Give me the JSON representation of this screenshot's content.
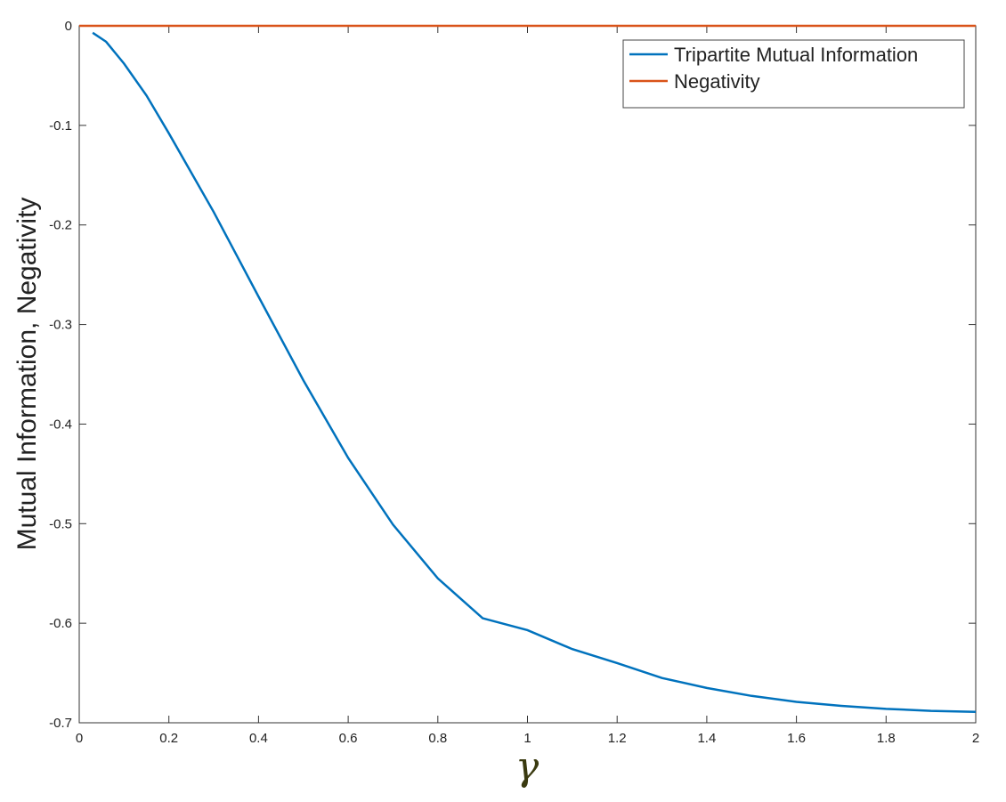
{
  "chart_data": {
    "type": "line",
    "ylabel": "Mutual Information, Negativity",
    "xlabel": "γ",
    "series": [
      {
        "name": "Tripartite Mutual Information",
        "color": "#0072bd",
        "x": [
          0.03,
          0.06,
          0.1,
          0.15,
          0.2,
          0.3,
          0.4,
          0.5,
          0.6,
          0.7,
          0.8,
          0.9,
          1.0,
          1.1,
          1.2,
          1.3,
          1.4,
          1.5,
          1.6,
          1.7,
          1.8,
          1.9,
          2.0
        ],
        "values": [
          -0.007,
          -0.016,
          -0.038,
          -0.07,
          -0.108,
          -0.187,
          -0.272,
          -0.356,
          -0.434,
          -0.501,
          -0.555,
          -0.595,
          -0.607,
          -0.626,
          -0.64,
          -0.655,
          -0.665,
          -0.673,
          -0.679,
          -0.683,
          -0.686,
          -0.688,
          -0.689
        ]
      },
      {
        "name": "Negativity",
        "color": "#d95319",
        "x": [
          0,
          2
        ],
        "values": [
          0,
          0
        ]
      }
    ],
    "xlim": [
      0,
      2
    ],
    "xticks": [
      0,
      0.2,
      0.4,
      0.6,
      0.8,
      1,
      1.2,
      1.4,
      1.6,
      1.8,
      2
    ],
    "ylim": [
      -0.7,
      0
    ],
    "yticks": [
      -0.7,
      -0.6,
      -0.5,
      -0.4,
      -0.3,
      -0.2,
      -0.1,
      0
    ],
    "grid": false,
    "legend": "upper right"
  }
}
